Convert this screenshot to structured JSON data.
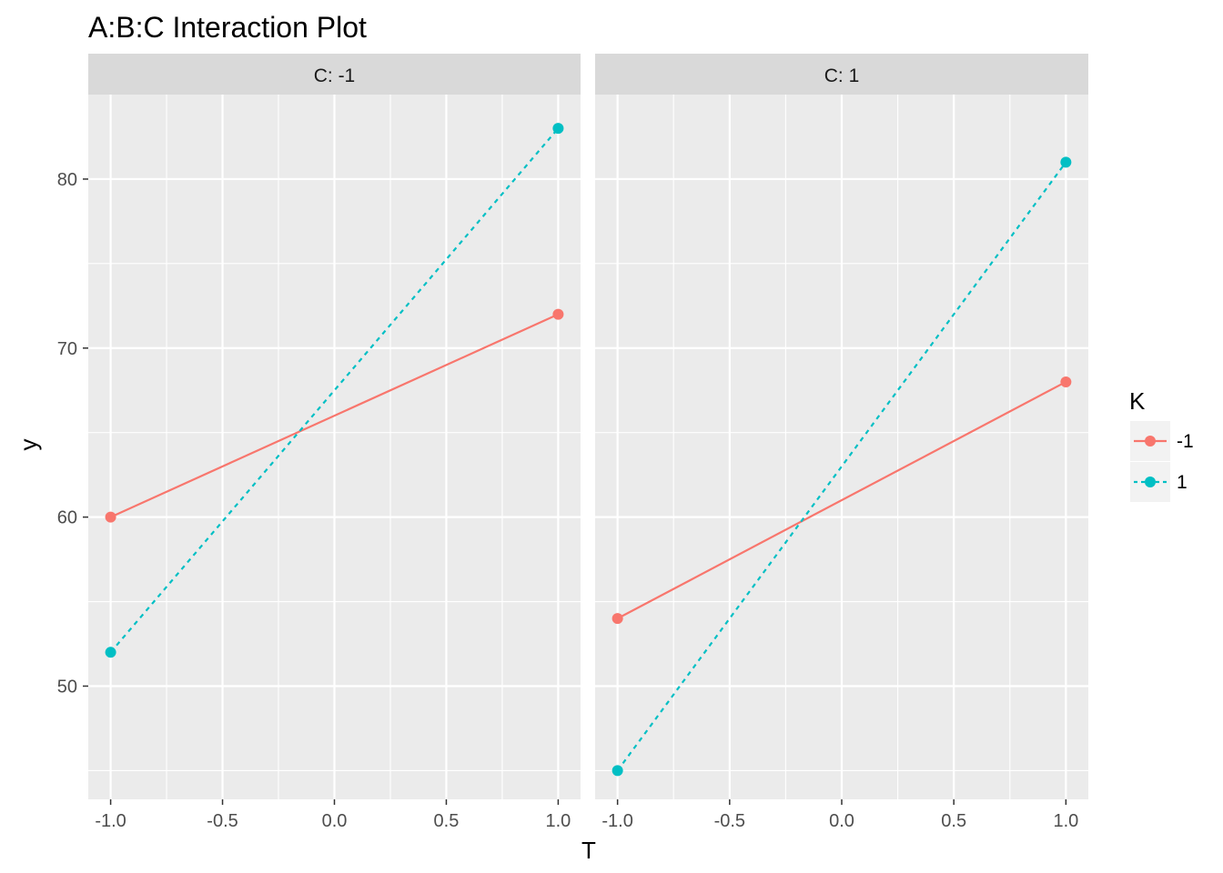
{
  "chart_data": {
    "type": "line",
    "title": "A:B:C Interaction Plot",
    "xlabel": "T",
    "ylabel": "y",
    "x_ticks": [
      "-1.0",
      "-0.5",
      "0.0",
      "0.5",
      "1.0"
    ],
    "x_tick_values": [
      -1.0,
      -0.5,
      0.0,
      0.5,
      1.0
    ],
    "y_ticks": [
      "50",
      "60",
      "70",
      "80"
    ],
    "y_tick_values": [
      50,
      60,
      70,
      80
    ],
    "xlim": [
      -1.1,
      1.1
    ],
    "ylim": [
      43.3,
      85.0
    ],
    "grid": true,
    "legend": {
      "title": "K",
      "placement": "right",
      "entries": [
        "-1",
        "1"
      ]
    },
    "facets": [
      {
        "label": "C: -1",
        "series": [
          {
            "name": "-1",
            "x": [
              -1,
              1
            ],
            "y": [
              60,
              72
            ]
          },
          {
            "name": "1",
            "x": [
              -1,
              1
            ],
            "y": [
              52,
              83
            ]
          }
        ]
      },
      {
        "label": "C: 1",
        "series": [
          {
            "name": "-1",
            "x": [
              -1,
              1
            ],
            "y": [
              54,
              68
            ]
          },
          {
            "name": "1",
            "x": [
              -1,
              1
            ],
            "y": [
              45,
              81
            ]
          }
        ]
      }
    ]
  },
  "colors": {
    "series_-1": "#F8766D",
    "series_1": "#00BFC4",
    "panel_bg": "#EBEBEB",
    "strip_bg": "#D9D9D9",
    "grid": "#FFFFFF"
  }
}
